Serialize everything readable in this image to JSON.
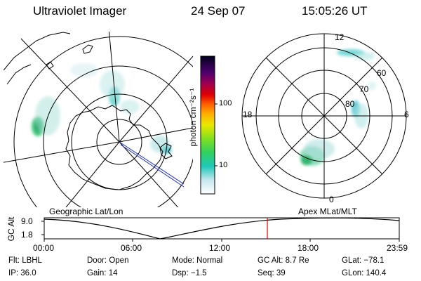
{
  "header": {
    "instrument": "Ultraviolet Imager",
    "date": "24 Sep 07",
    "time": "15:05:26 UT"
  },
  "colorbar": {
    "unit_label": "photon cm⁻²s⁻¹",
    "ticks": [
      "100",
      "10"
    ]
  },
  "polar_mlt": {
    "hour_labels": [
      "12",
      "18",
      "6",
      "0"
    ],
    "lat_labels": [
      "60",
      "70",
      "80"
    ]
  },
  "timeline": {
    "left_title": "Geographic Lat/Lon",
    "right_title": "Apex MLat/MLT",
    "y_label": "GC Alt",
    "y_ticks": [
      "9.0",
      "1.8"
    ],
    "x_ticks": [
      "00:00",
      "06:00",
      "12:00",
      "18:00",
      "23:59"
    ]
  },
  "footer": {
    "row1": [
      {
        "label": "Flt:",
        "value": "LBHL"
      },
      {
        "label": "Door:",
        "value": "Open"
      },
      {
        "label": "Mode:",
        "value": "Normal"
      },
      {
        "label": "GC Alt:",
        "value": "8.7 Re"
      },
      {
        "label": "GLat:",
        "value": "−78.1"
      }
    ],
    "row2": [
      {
        "label": "IP:",
        "value": "36.0"
      },
      {
        "label": "Gain:",
        "value": "14"
      },
      {
        "label": "Dsp:",
        "value": "−1.5"
      },
      {
        "label": "Seq:",
        "value": "39"
      },
      {
        "label": "GLon:",
        "value": "140.4"
      }
    ]
  }
}
